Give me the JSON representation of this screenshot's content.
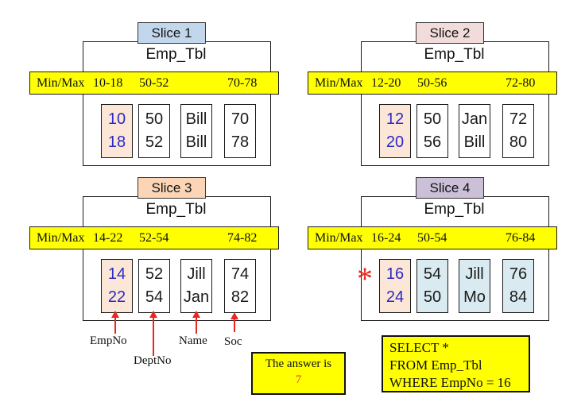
{
  "slices": [
    {
      "title": "Slice 1",
      "table_name": "Emp_Tbl",
      "minmax_label": "Min/Max",
      "ranges": [
        "10-18",
        "50-52",
        "70-78"
      ],
      "columns": [
        [
          "10",
          "18"
        ],
        [
          "50",
          "52"
        ],
        [
          "Bill",
          "Bill"
        ],
        [
          "70",
          "78"
        ]
      ],
      "tab_color": "#c3d7ec"
    },
    {
      "title": "Slice 2",
      "table_name": "Emp_Tbl",
      "minmax_label": "Min/Max",
      "ranges": [
        "12-20",
        "50-56",
        "72-80"
      ],
      "columns": [
        [
          "12",
          "20"
        ],
        [
          "50",
          "56"
        ],
        [
          "Jan",
          "Bill"
        ],
        [
          "72",
          "80"
        ]
      ],
      "tab_color": "#f2dcdb"
    },
    {
      "title": "Slice 3",
      "table_name": "Emp_Tbl",
      "minmax_label": "Min/Max",
      "ranges": [
        "14-22",
        "52-54",
        "74-82"
      ],
      "columns": [
        [
          "14",
          "22"
        ],
        [
          "52",
          "54"
        ],
        [
          "Jill",
          "Jan"
        ],
        [
          "74",
          "82"
        ]
      ],
      "tab_color": "#fbd5b5"
    },
    {
      "title": "Slice 4",
      "table_name": "Emp_Tbl",
      "minmax_label": "Min/Max",
      "ranges": [
        "16-24",
        "50-54",
        "76-84"
      ],
      "columns": [
        [
          "16",
          "24"
        ],
        [
          "54",
          "50"
        ],
        [
          "Jill",
          "Mo"
        ],
        [
          "76",
          "84"
        ]
      ],
      "tab_color": "#cbc0d8",
      "marker": "*"
    }
  ],
  "column_labels": [
    "EmpNo",
    "DeptNo",
    "Name",
    "Soc"
  ],
  "answer_box": {
    "text": "The answer is",
    "answer": "7"
  },
  "sql_box": {
    "lines": [
      "SELECT *",
      "FROM Emp_Tbl",
      "WHERE EmpNo = 16"
    ]
  },
  "colors": {
    "highlight_bar": "#ffff00",
    "empno_column_bg": "#fce6d8",
    "empno_text_blue": "#2b2bc4",
    "slice4_cell_bg": "#d9eaf1",
    "marker_red": "#e8281e",
    "answer_red": "#e0432d",
    "tab_slice1": "#c3d7ec",
    "tab_slice2": "#f2dcdb",
    "tab_slice3": "#fbd5b5",
    "tab_slice4": "#cbc0d8"
  }
}
